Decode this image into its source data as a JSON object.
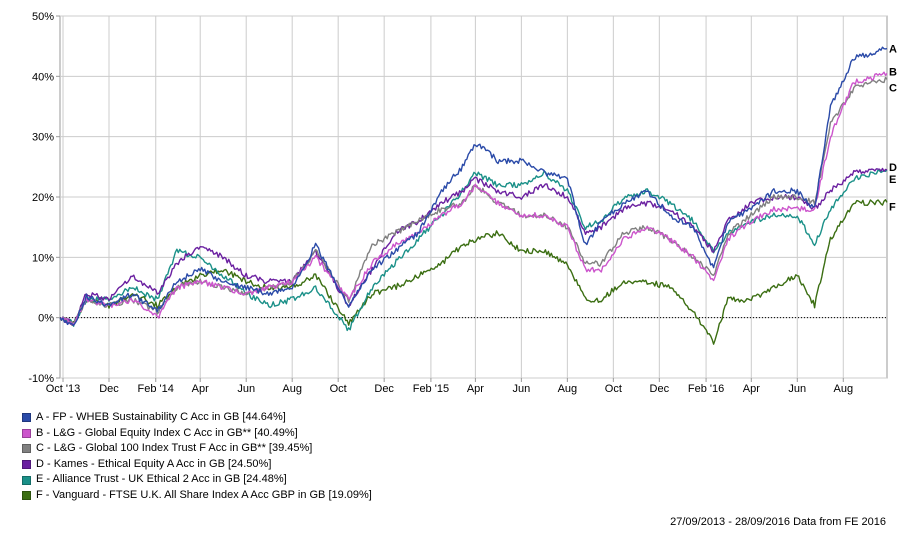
{
  "chart_data": {
    "type": "line",
    "ylim": [
      -10,
      50
    ],
    "y_ticks": [
      -10,
      0,
      10,
      20,
      30,
      40,
      50
    ],
    "y_tick_labels": [
      "-10%",
      "0%",
      "10%",
      "20%",
      "30%",
      "40%",
      "50%"
    ],
    "x_range": [
      "2013-09-27",
      "2016-09-28"
    ],
    "x_ticks": [
      {
        "date": "2013-10-01",
        "label": "Oct '13"
      },
      {
        "date": "2013-12-01",
        "label": "Dec"
      },
      {
        "date": "2014-02-01",
        "label": "Feb '14"
      },
      {
        "date": "2014-04-01",
        "label": "Apr"
      },
      {
        "date": "2014-06-01",
        "label": "Jun"
      },
      {
        "date": "2014-08-01",
        "label": "Aug"
      },
      {
        "date": "2014-10-01",
        "label": "Oct"
      },
      {
        "date": "2014-12-01",
        "label": "Dec"
      },
      {
        "date": "2015-02-01",
        "label": "Feb '15"
      },
      {
        "date": "2015-04-01",
        "label": "Apr"
      },
      {
        "date": "2015-06-01",
        "label": "Jun"
      },
      {
        "date": "2015-08-01",
        "label": "Aug"
      },
      {
        "date": "2015-10-01",
        "label": "Oct"
      },
      {
        "date": "2015-12-01",
        "label": "Dec"
      },
      {
        "date": "2016-02-01",
        "label": "Feb '16"
      },
      {
        "date": "2016-04-01",
        "label": "Apr"
      },
      {
        "date": "2016-06-01",
        "label": "Jun"
      },
      {
        "date": "2016-08-01",
        "label": "Aug"
      }
    ],
    "grid": true,
    "zero_line": "dotted",
    "legend_position": "bottom-left",
    "series": [
      {
        "key": "A",
        "name": "A - FP - WHEB Sustainability C Acc in GB [44.64%]",
        "color": "#2a4aa8",
        "points": [
          [
            "2013-09-27",
            0
          ],
          [
            "2013-10-15",
            -1.5
          ],
          [
            "2013-11-01",
            3.5
          ],
          [
            "2013-12-01",
            2
          ],
          [
            "2014-01-01",
            4
          ],
          [
            "2014-02-03",
            1
          ],
          [
            "2014-03-01",
            6
          ],
          [
            "2014-04-01",
            8
          ],
          [
            "2014-05-01",
            6
          ],
          [
            "2014-06-01",
            5
          ],
          [
            "2014-07-01",
            4
          ],
          [
            "2014-08-01",
            5
          ],
          [
            "2014-09-01",
            12
          ],
          [
            "2014-10-15",
            2
          ],
          [
            "2014-11-15",
            8
          ],
          [
            "2014-12-15",
            11
          ],
          [
            "2015-01-15",
            14
          ],
          [
            "2015-02-15",
            21
          ],
          [
            "2015-03-15",
            25
          ],
          [
            "2015-04-01",
            29
          ],
          [
            "2015-05-01",
            26
          ],
          [
            "2015-06-01",
            26
          ],
          [
            "2015-07-01",
            24
          ],
          [
            "2015-08-01",
            23
          ],
          [
            "2015-08-25",
            12
          ],
          [
            "2015-09-15",
            16
          ],
          [
            "2015-10-15",
            19
          ],
          [
            "2015-11-15",
            21
          ],
          [
            "2015-12-15",
            17
          ],
          [
            "2016-01-15",
            15
          ],
          [
            "2016-02-11",
            8
          ],
          [
            "2016-03-01",
            16
          ],
          [
            "2016-04-01",
            18
          ],
          [
            "2016-05-01",
            21
          ],
          [
            "2016-06-01",
            21
          ],
          [
            "2016-06-24",
            18
          ],
          [
            "2016-07-15",
            35
          ],
          [
            "2016-08-15",
            43
          ],
          [
            "2016-09-28",
            44.6
          ]
        ]
      },
      {
        "key": "B",
        "name": "B - L&G - Global Equity Index C Acc in GB** [40.49%]",
        "color": "#cc55cc",
        "points": [
          [
            "2013-09-27",
            0
          ],
          [
            "2013-10-15",
            -1
          ],
          [
            "2013-11-01",
            3
          ],
          [
            "2013-12-01",
            2
          ],
          [
            "2014-01-01",
            3
          ],
          [
            "2014-02-03",
            0
          ],
          [
            "2014-03-01",
            5
          ],
          [
            "2014-04-01",
            6
          ],
          [
            "2014-05-01",
            5
          ],
          [
            "2014-06-01",
            4
          ],
          [
            "2014-07-01",
            5
          ],
          [
            "2014-08-01",
            6
          ],
          [
            "2014-09-01",
            10
          ],
          [
            "2014-10-15",
            3
          ],
          [
            "2014-11-15",
            9
          ],
          [
            "2014-12-15",
            12
          ],
          [
            "2015-01-15",
            14
          ],
          [
            "2015-02-15",
            17
          ],
          [
            "2015-03-15",
            19
          ],
          [
            "2015-04-01",
            22
          ],
          [
            "2015-05-01",
            19
          ],
          [
            "2015-06-01",
            17
          ],
          [
            "2015-07-01",
            17
          ],
          [
            "2015-08-01",
            15
          ],
          [
            "2015-08-25",
            8
          ],
          [
            "2015-09-15",
            8
          ],
          [
            "2015-10-15",
            13
          ],
          [
            "2015-11-15",
            15
          ],
          [
            "2015-12-15",
            13
          ],
          [
            "2016-01-15",
            10
          ],
          [
            "2016-02-11",
            6
          ],
          [
            "2016-03-01",
            13
          ],
          [
            "2016-04-01",
            16
          ],
          [
            "2016-05-01",
            18
          ],
          [
            "2016-06-01",
            18
          ],
          [
            "2016-06-24",
            18
          ],
          [
            "2016-07-15",
            30
          ],
          [
            "2016-08-15",
            39
          ],
          [
            "2016-09-28",
            40.5
          ]
        ]
      },
      {
        "key": "C",
        "name": "C - L&G - Global 100 Index Trust F Acc in GB** [39.45%]",
        "color": "#808080",
        "points": [
          [
            "2013-09-27",
            0
          ],
          [
            "2013-10-15",
            -1
          ],
          [
            "2013-11-01",
            3
          ],
          [
            "2013-12-01",
            2
          ],
          [
            "2014-01-01",
            3
          ],
          [
            "2014-02-03",
            1
          ],
          [
            "2014-03-01",
            5
          ],
          [
            "2014-04-01",
            6
          ],
          [
            "2014-05-01",
            5
          ],
          [
            "2014-06-01",
            4
          ],
          [
            "2014-07-01",
            5
          ],
          [
            "2014-08-01",
            6
          ],
          [
            "2014-09-01",
            11
          ],
          [
            "2014-10-15",
            3
          ],
          [
            "2014-11-15",
            12
          ],
          [
            "2014-12-15",
            14
          ],
          [
            "2015-01-15",
            16
          ],
          [
            "2015-02-15",
            18
          ],
          [
            "2015-03-15",
            19
          ],
          [
            "2015-04-01",
            22
          ],
          [
            "2015-05-01",
            19
          ],
          [
            "2015-06-01",
            17
          ],
          [
            "2015-07-01",
            17
          ],
          [
            "2015-08-01",
            15
          ],
          [
            "2015-08-25",
            9
          ],
          [
            "2015-09-15",
            9
          ],
          [
            "2015-10-15",
            14
          ],
          [
            "2015-11-15",
            15
          ],
          [
            "2015-12-15",
            13
          ],
          [
            "2016-01-15",
            10
          ],
          [
            "2016-02-11",
            7
          ],
          [
            "2016-03-01",
            14
          ],
          [
            "2016-04-01",
            17
          ],
          [
            "2016-05-01",
            20
          ],
          [
            "2016-06-01",
            20
          ],
          [
            "2016-06-24",
            19
          ],
          [
            "2016-07-15",
            32
          ],
          [
            "2016-08-15",
            38
          ],
          [
            "2016-09-28",
            39.5
          ]
        ]
      },
      {
        "key": "D",
        "name": "D - Kames - Ethical Equity A Acc in GB [24.50%]",
        "color": "#6a1fa0",
        "points": [
          [
            "2013-09-27",
            0
          ],
          [
            "2013-10-15",
            -1
          ],
          [
            "2013-11-01",
            4
          ],
          [
            "2013-12-01",
            3
          ],
          [
            "2014-01-01",
            7
          ],
          [
            "2014-02-03",
            4
          ],
          [
            "2014-03-01",
            9
          ],
          [
            "2014-04-01",
            12
          ],
          [
            "2014-05-01",
            10
          ],
          [
            "2014-06-01",
            7
          ],
          [
            "2014-07-01",
            6
          ],
          [
            "2014-08-01",
            6
          ],
          [
            "2014-09-01",
            11
          ],
          [
            "2014-10-15",
            2
          ],
          [
            "2014-11-15",
            8
          ],
          [
            "2014-12-15",
            14
          ],
          [
            "2015-01-15",
            16
          ],
          [
            "2015-02-15",
            19
          ],
          [
            "2015-03-15",
            21
          ],
          [
            "2015-04-01",
            23
          ],
          [
            "2015-05-01",
            21
          ],
          [
            "2015-06-01",
            20
          ],
          [
            "2015-07-01",
            22
          ],
          [
            "2015-08-01",
            20
          ],
          [
            "2015-08-25",
            14
          ],
          [
            "2015-09-15",
            15
          ],
          [
            "2015-10-15",
            18
          ],
          [
            "2015-11-15",
            19
          ],
          [
            "2015-12-15",
            18
          ],
          [
            "2016-01-15",
            15
          ],
          [
            "2016-02-11",
            11
          ],
          [
            "2016-03-01",
            16
          ],
          [
            "2016-04-01",
            19
          ],
          [
            "2016-05-01",
            20
          ],
          [
            "2016-06-01",
            20
          ],
          [
            "2016-06-24",
            18
          ],
          [
            "2016-07-15",
            21
          ],
          [
            "2016-08-15",
            24
          ],
          [
            "2016-09-28",
            24.5
          ]
        ]
      },
      {
        "key": "E",
        "name": "E - Alliance Trust - UK Ethical 2 Acc in GB [24.48%]",
        "color": "#1a9088",
        "points": [
          [
            "2013-09-27",
            0
          ],
          [
            "2013-10-15",
            -1
          ],
          [
            "2013-11-01",
            3
          ],
          [
            "2013-12-01",
            3
          ],
          [
            "2014-01-01",
            5
          ],
          [
            "2014-02-03",
            3
          ],
          [
            "2014-03-01",
            11
          ],
          [
            "2014-04-01",
            10
          ],
          [
            "2014-05-01",
            7
          ],
          [
            "2014-06-01",
            4
          ],
          [
            "2014-07-01",
            2
          ],
          [
            "2014-08-01",
            3
          ],
          [
            "2014-09-01",
            5
          ],
          [
            "2014-10-15",
            -2
          ],
          [
            "2014-11-15",
            5
          ],
          [
            "2014-12-15",
            9
          ],
          [
            "2015-01-15",
            13
          ],
          [
            "2015-02-15",
            17
          ],
          [
            "2015-03-15",
            21
          ],
          [
            "2015-04-01",
            24
          ],
          [
            "2015-05-01",
            22
          ],
          [
            "2015-06-01",
            22
          ],
          [
            "2015-07-01",
            24
          ],
          [
            "2015-08-01",
            21
          ],
          [
            "2015-08-25",
            15
          ],
          [
            "2015-09-15",
            16
          ],
          [
            "2015-10-15",
            20
          ],
          [
            "2015-11-15",
            21
          ],
          [
            "2015-12-15",
            19
          ],
          [
            "2016-01-15",
            16
          ],
          [
            "2016-02-11",
            11
          ],
          [
            "2016-03-01",
            14
          ],
          [
            "2016-04-01",
            16
          ],
          [
            "2016-05-01",
            17
          ],
          [
            "2016-06-01",
            17
          ],
          [
            "2016-06-24",
            12
          ],
          [
            "2016-07-15",
            18
          ],
          [
            "2016-08-15",
            23
          ],
          [
            "2016-09-28",
            24.5
          ]
        ]
      },
      {
        "key": "F",
        "name": "F - Vanguard - FTSE U.K. All Share Index A Acc GBP in GB [19.09%]",
        "color": "#3b6e12",
        "points": [
          [
            "2013-09-27",
            0
          ],
          [
            "2013-10-15",
            -1
          ],
          [
            "2013-11-01",
            3
          ],
          [
            "2013-12-01",
            2
          ],
          [
            "2014-01-01",
            4
          ],
          [
            "2014-02-03",
            2
          ],
          [
            "2014-03-01",
            5
          ],
          [
            "2014-04-01",
            7
          ],
          [
            "2014-05-01",
            8
          ],
          [
            "2014-06-01",
            6
          ],
          [
            "2014-07-01",
            5
          ],
          [
            "2014-08-01",
            5
          ],
          [
            "2014-09-01",
            7
          ],
          [
            "2014-10-15",
            -1
          ],
          [
            "2014-11-15",
            4
          ],
          [
            "2014-12-15",
            5
          ],
          [
            "2015-01-15",
            7
          ],
          [
            "2015-02-15",
            9
          ],
          [
            "2015-03-15",
            12
          ],
          [
            "2015-04-01",
            13
          ],
          [
            "2015-05-01",
            14
          ],
          [
            "2015-06-01",
            11
          ],
          [
            "2015-07-01",
            11
          ],
          [
            "2015-08-01",
            9
          ],
          [
            "2015-08-25",
            3
          ],
          [
            "2015-09-15",
            3
          ],
          [
            "2015-10-15",
            6
          ],
          [
            "2015-11-15",
            6
          ],
          [
            "2015-12-15",
            5
          ],
          [
            "2016-01-15",
            1
          ],
          [
            "2016-02-11",
            -4
          ],
          [
            "2016-03-01",
            3
          ],
          [
            "2016-04-01",
            3
          ],
          [
            "2016-05-01",
            5
          ],
          [
            "2016-06-01",
            7
          ],
          [
            "2016-06-24",
            2
          ],
          [
            "2016-07-15",
            13
          ],
          [
            "2016-08-15",
            19
          ],
          [
            "2016-09-28",
            19.1
          ]
        ]
      }
    ]
  },
  "footer": "27/09/2013 - 28/09/2016 Data from FE 2016"
}
